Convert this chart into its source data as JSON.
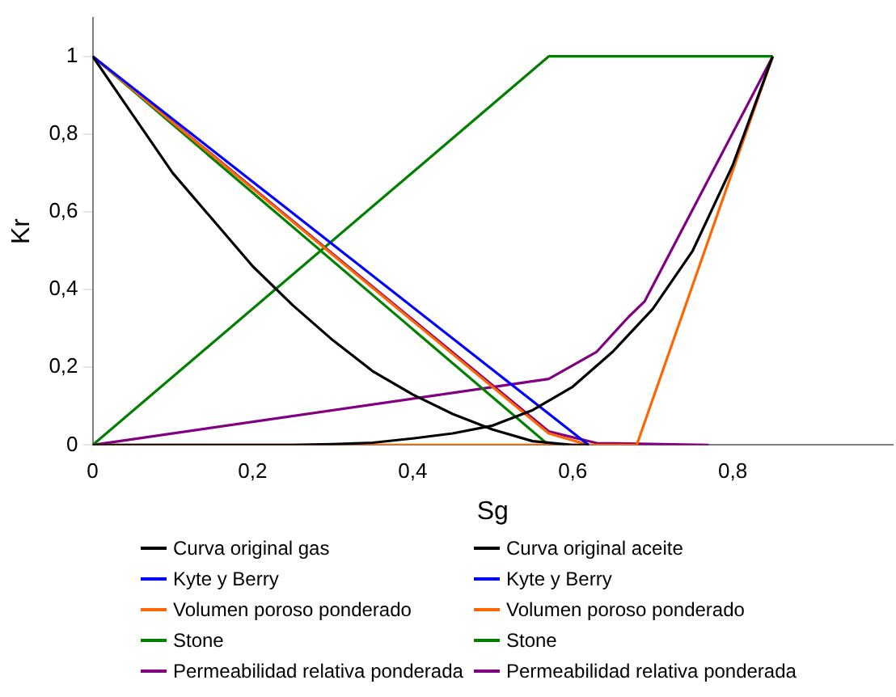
{
  "chart_data": {
    "type": "line",
    "xlabel": "Sg",
    "ylabel": "Kr",
    "xlim": [
      0,
      1
    ],
    "ylim": [
      0,
      1.1
    ],
    "xticks": [
      0,
      {
        "value": 0.2,
        "label": "0,2"
      },
      {
        "value": 0.4,
        "label": "0,4"
      },
      {
        "value": 0.6,
        "label": "0,6"
      },
      {
        "value": 0.8,
        "label": "0,8"
      }
    ],
    "yticks": [
      0,
      {
        "value": 0.2,
        "label": "0,2"
      },
      {
        "value": 0.4,
        "label": "0,4"
      },
      {
        "value": 0.6,
        "label": "0,6"
      },
      {
        "value": 0.8,
        "label": "0,8"
      },
      1
    ],
    "grid": false,
    "legend": "bottom",
    "series": [
      {
        "name": "Curva original gas",
        "color": "#000000",
        "x": [
          0,
          0.25,
          0.3,
          0.35,
          0.4,
          0.45,
          0.5,
          0.55,
          0.6,
          0.65,
          0.7,
          0.75,
          0.8,
          0.85
        ],
        "values": [
          0,
          0,
          0.002,
          0.006,
          0.017,
          0.03,
          0.05,
          0.09,
          0.15,
          0.24,
          0.35,
          0.5,
          0.72,
          1
        ]
      },
      {
        "name": "Curva original aceite",
        "color": "#000000",
        "x": [
          0,
          0.05,
          0.1,
          0.15,
          0.2,
          0.25,
          0.3,
          0.35,
          0.4,
          0.45,
          0.5,
          0.55,
          0.6,
          0.62
        ],
        "values": [
          1,
          0.85,
          0.7,
          0.58,
          0.46,
          0.36,
          0.27,
          0.19,
          0.13,
          0.08,
          0.04,
          0.01,
          0,
          0
        ]
      },
      {
        "name": "Kyte y Berry",
        "color": "#0000ff"
      },
      {
        "name": "Kyte y Berry",
        "color": "#0000ff",
        "x": [
          0,
          0.62
        ],
        "values": [
          1,
          0
        ]
      },
      {
        "name": "Volumen poroso ponderado",
        "color": "#ff6600",
        "x": [
          0,
          0.68,
          0.85
        ],
        "values": [
          0,
          0,
          1
        ]
      },
      {
        "name": "Volumen poroso ponderado",
        "color": "#ff6600",
        "x": [
          0,
          0.57,
          0.62
        ],
        "values": [
          1,
          0.03,
          0
        ]
      },
      {
        "name": "Stone",
        "color": "#008000",
        "x": [
          0,
          0.57,
          0.85
        ],
        "values": [
          0,
          1,
          1
        ]
      },
      {
        "name": "Stone",
        "color": "#008000",
        "x": [
          0,
          0.57
        ],
        "values": [
          1,
          0
        ]
      },
      {
        "name": "Permeabilidad relativa ponderada",
        "color": "#800080",
        "x": [
          0,
          0.57,
          0.63,
          0.67,
          0.69,
          0.85
        ],
        "values": [
          0,
          0.17,
          0.24,
          0.33,
          0.37,
          1
        ]
      },
      {
        "name": "Permeabilidad relativa ponderada",
        "color": "#800080",
        "x": [
          0,
          0.57,
          0.63,
          0.77
        ],
        "values": [
          1,
          0.035,
          0.005,
          0
        ]
      }
    ]
  }
}
